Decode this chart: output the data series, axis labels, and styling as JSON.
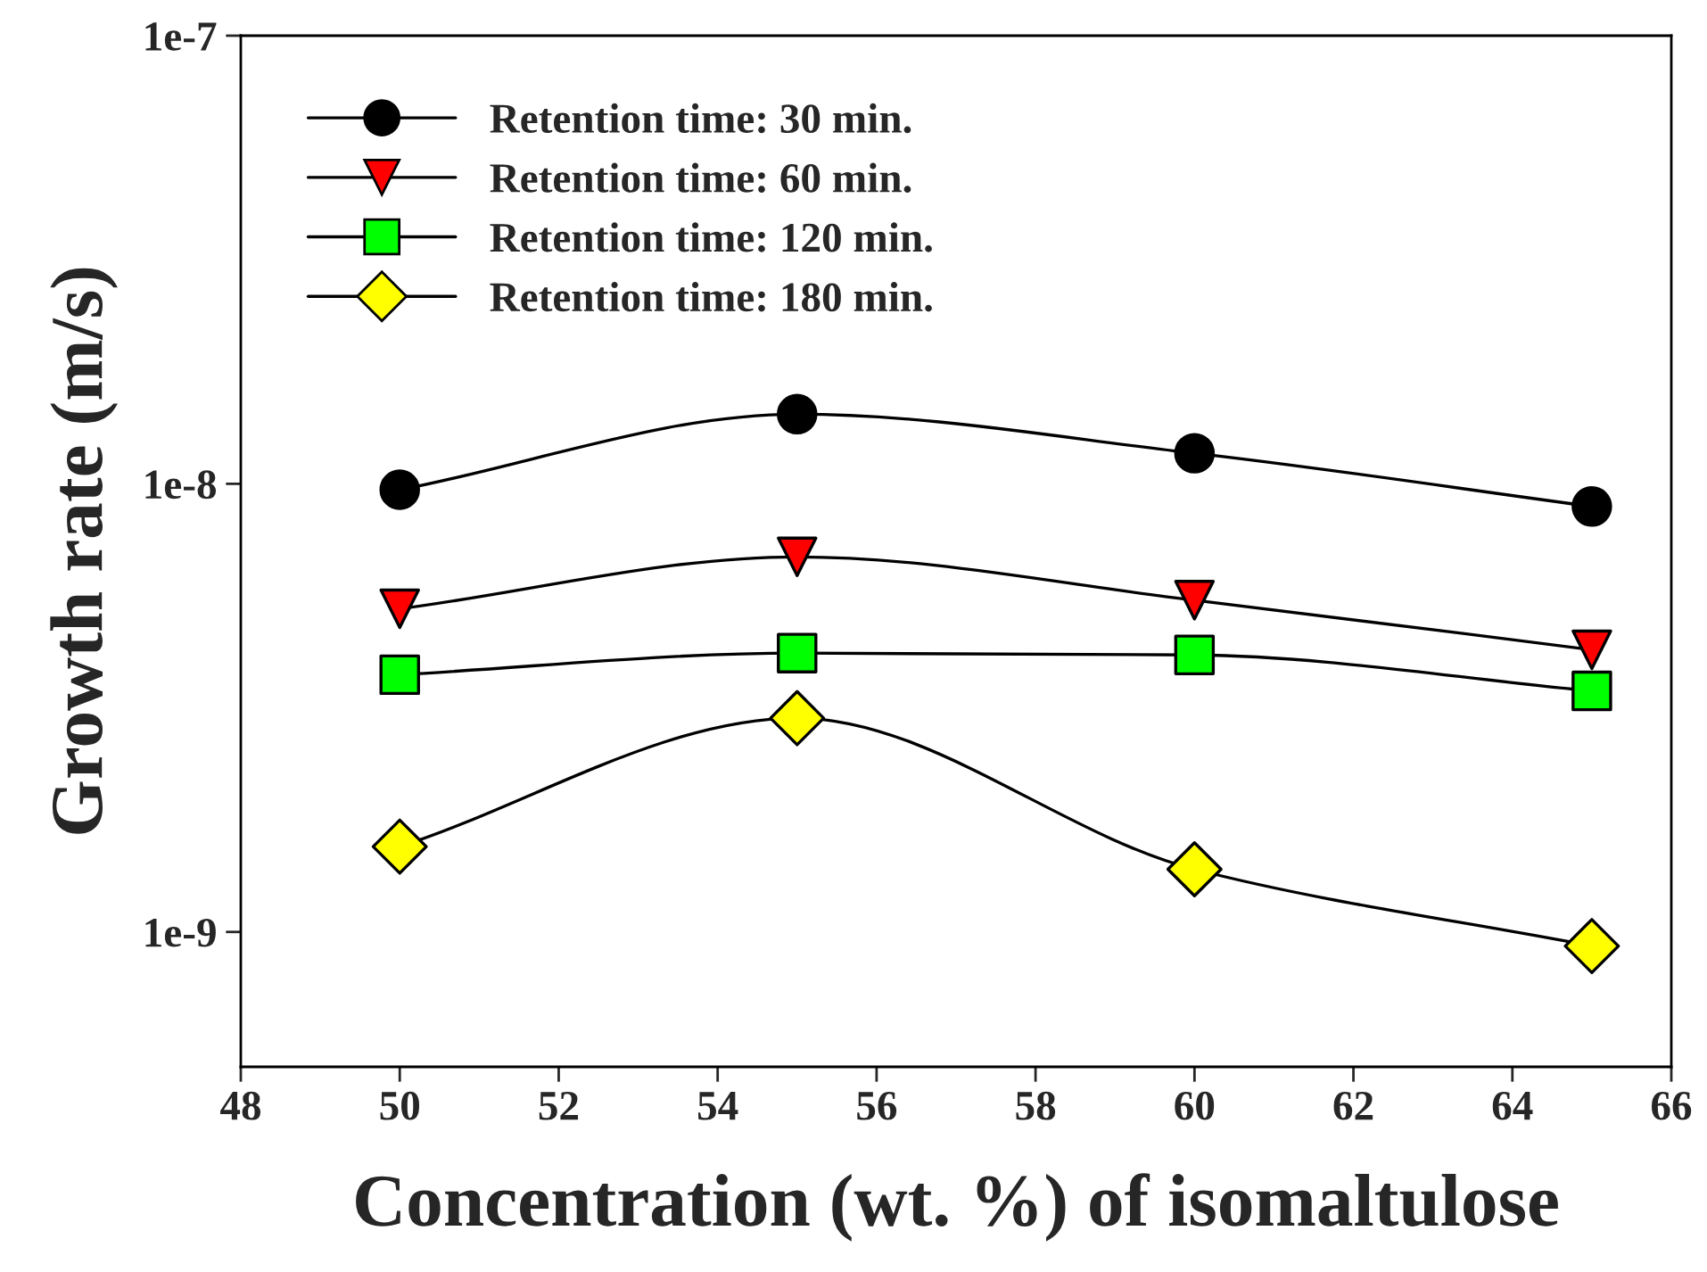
{
  "chart_data": {
    "type": "line",
    "xlabel": "Concentration (wt. %) of isomaltulose",
    "ylabel": "Growth rate (m/s)",
    "x": [
      50,
      55,
      60,
      65
    ],
    "series": [
      {
        "name": "Retention time: 30 min.",
        "color": "#000000",
        "marker": "circle",
        "values": [
          9.7e-09,
          1.43e-08,
          1.17e-08,
          8.9e-09
        ]
      },
      {
        "name": "Retention time: 60 min.",
        "color": "#ff0000",
        "marker": "triangle",
        "values": [
          5.26e-09,
          6.87e-09,
          5.5e-09,
          4.26e-09
        ]
      },
      {
        "name": "Retention time: 120 min.",
        "color": "#00ff00",
        "marker": "square",
        "values": [
          3.75e-09,
          4.19e-09,
          4.15e-09,
          3.45e-09
        ]
      },
      {
        "name": "Retention time: 180 min.",
        "color": "#ffff00",
        "marker": "diamond",
        "values": [
          1.55e-09,
          3e-09,
          1.38e-09,
          9.3e-10
        ]
      }
    ],
    "log": true,
    "xlim": [
      48,
      66
    ],
    "xticks": [
      48,
      50,
      52,
      54,
      56,
      58,
      60,
      62,
      64,
      66
    ],
    "ylim": [
      5e-10,
      1e-07
    ],
    "yticks": [
      {
        "value": 1e-09,
        "label": "1e-9"
      },
      {
        "value": 1e-08,
        "label": "1e-8"
      },
      {
        "value": 1e-07,
        "label": "1e-7"
      }
    ],
    "grid": false,
    "legend": "top left",
    "line_style": "solid"
  }
}
